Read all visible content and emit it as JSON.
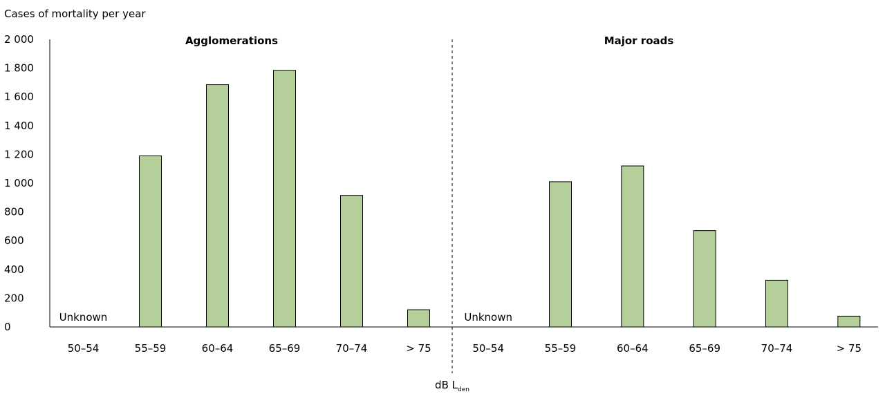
{
  "chart_data": {
    "type": "bar",
    "ylabel": "Cases of mortality per year",
    "xlabel_main": "dB L",
    "xlabel_sub": "den",
    "ylim": [
      0,
      2000
    ],
    "yticks": [
      {
        "value": 0,
        "label": "0"
      },
      {
        "value": 200,
        "label": "200"
      },
      {
        "value": 400,
        "label": "400"
      },
      {
        "value": 600,
        "label": "600"
      },
      {
        "value": 800,
        "label": "800"
      },
      {
        "value": 1000,
        "label": "1 000"
      },
      {
        "value": 1200,
        "label": "1 200"
      },
      {
        "value": 1400,
        "label": "1 400"
      },
      {
        "value": 1600,
        "label": "1 600"
      },
      {
        "value": 1800,
        "label": "1 800"
      },
      {
        "value": 2000,
        "label": "2 000"
      }
    ],
    "bar_color": "#b5cf9a",
    "groups": [
      {
        "title": "Agglomerations",
        "unknown_label": "Unknown",
        "categories": [
          "50–54",
          "55–59",
          "60–64",
          "65–69",
          "70–74",
          "> 75"
        ],
        "values": [
          null,
          1190,
          1685,
          1785,
          915,
          120
        ]
      },
      {
        "title": "Major roads",
        "unknown_label": "Unknown",
        "categories": [
          "50–54",
          "55–59",
          "60–64",
          "65–69",
          "70–74",
          "> 75"
        ],
        "values": [
          null,
          1010,
          1120,
          670,
          325,
          75
        ]
      }
    ]
  }
}
